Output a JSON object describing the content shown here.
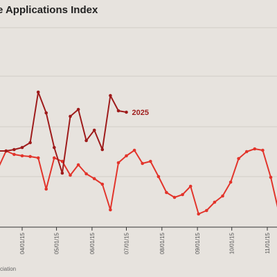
{
  "chart_data": {
    "type": "line",
    "title": "e Applications Index",
    "source_text": "ciation",
    "x_tick_labels": [
      "04/01/15",
      "05/01/15",
      "06/01/15",
      "07/01/15",
      "08/01/15",
      "09/01/15",
      "10/01/15",
      "11/01/15"
    ],
    "grid": "horizontal",
    "series": [
      {
        "name": "2025",
        "color": "#9e1b1b",
        "points": [
          [
            "03/04/15",
            168
          ],
          [
            "03/11/15",
            210
          ],
          [
            "03/18/15",
            210
          ],
          [
            "03/25/15",
            212
          ],
          [
            "04/01/15",
            215
          ],
          [
            "04/08/15",
            222
          ],
          [
            "04/15/15",
            295
          ],
          [
            "04/22/15",
            265
          ],
          [
            "04/29/15",
            215
          ],
          [
            "05/06/15",
            178
          ],
          [
            "05/13/15",
            260
          ],
          [
            "05/20/15",
            270
          ],
          [
            "05/27/15",
            225
          ],
          [
            "06/03/15",
            240
          ],
          [
            "06/10/15",
            212
          ],
          [
            "06/17/15",
            290
          ],
          [
            "06/24/15",
            268
          ],
          [
            "07/01/15",
            266
          ]
        ]
      },
      {
        "name": "",
        "color": "#e2342b",
        "points": [
          [
            "03/04/15",
            145
          ],
          [
            "03/11/15",
            185
          ],
          [
            "03/18/15",
            210
          ],
          [
            "03/25/15",
            205
          ],
          [
            "04/01/15",
            203
          ],
          [
            "04/08/15",
            202
          ],
          [
            "04/15/15",
            200
          ],
          [
            "04/22/15",
            155
          ],
          [
            "04/29/15",
            200
          ],
          [
            "05/06/15",
            195
          ],
          [
            "05/13/15",
            175
          ],
          [
            "05/20/15",
            190
          ],
          [
            "05/27/15",
            177
          ],
          [
            "06/03/15",
            170
          ],
          [
            "06/10/15",
            162
          ],
          [
            "06/17/15",
            125
          ],
          [
            "06/24/15",
            193
          ],
          [
            "07/01/15",
            203
          ],
          [
            "07/08/15",
            211
          ],
          [
            "07/15/15",
            192
          ],
          [
            "07/22/15",
            195
          ],
          [
            "07/29/15",
            173
          ],
          [
            "08/05/15",
            150
          ],
          [
            "08/12/15",
            143
          ],
          [
            "08/19/15",
            147
          ],
          [
            "08/26/15",
            159
          ],
          [
            "09/02/15",
            119
          ],
          [
            "09/09/15",
            124
          ],
          [
            "09/16/15",
            136
          ],
          [
            "09/23/15",
            145
          ],
          [
            "09/30/15",
            165
          ],
          [
            "10/07/15",
            199
          ],
          [
            "10/14/15",
            209
          ],
          [
            "10/21/15",
            213
          ],
          [
            "10/28/15",
            211
          ],
          [
            "11/04/15",
            172
          ],
          [
            "11/11/15",
            122
          ],
          [
            "11/18/15",
            154
          ],
          [
            "11/25/15",
            124
          ],
          [
            "12/02/15",
            125
          ]
        ]
      }
    ]
  }
}
